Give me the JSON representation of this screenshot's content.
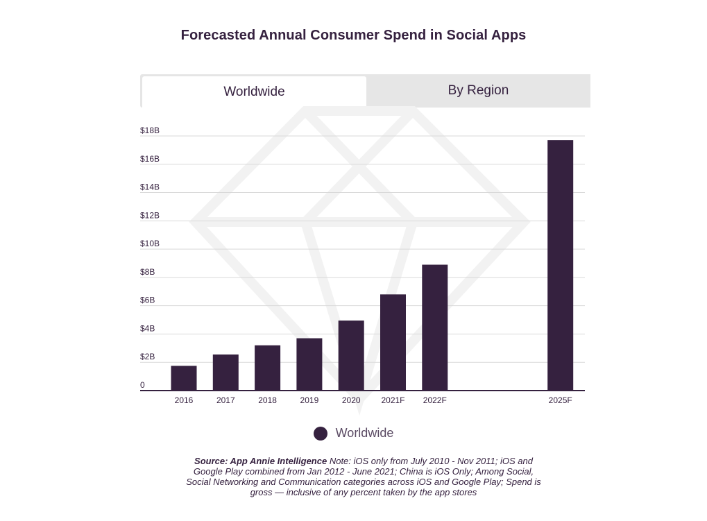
{
  "chart_data": {
    "type": "bar",
    "title": "Forecasted Annual Consumer Spend in Social Apps",
    "categories": [
      "2016",
      "2017",
      "2018",
      "2019",
      "2020",
      "2021F",
      "2022F",
      "2025F"
    ],
    "series": [
      {
        "name": "Worldwide",
        "values": [
          1.75,
          2.55,
          3.2,
          3.7,
          4.95,
          6.8,
          8.9,
          17.7
        ]
      }
    ],
    "ylim": [
      0,
      18
    ],
    "yticks": [
      0,
      2,
      4,
      6,
      8,
      10,
      12,
      14,
      16,
      18
    ],
    "ytick_labels": [
      "0",
      "$2B",
      "$4B",
      "$6B",
      "$8B",
      "$10B",
      "$12B",
      "$14B",
      "$16B",
      "$18B"
    ],
    "xlabel": "",
    "ylabel": "",
    "grid": true,
    "legend_position": "bottom-center",
    "bar_color": "#35213f"
  },
  "tabs": {
    "worldwide": "Worldwide",
    "by_region": "By Region"
  },
  "legend": {
    "label": "Worldwide"
  },
  "footnote": {
    "source": "Source: App Annie Intelligence",
    "note": " Note: iOS only from July 2010 - Nov 2011; iOS and Google Play combined from Jan 2012 - June 2021; China is iOS Only; Among Social, Social Networking and Communication categories across iOS and Google Play; Spend is gross — inclusive of any percent taken by the app stores"
  }
}
